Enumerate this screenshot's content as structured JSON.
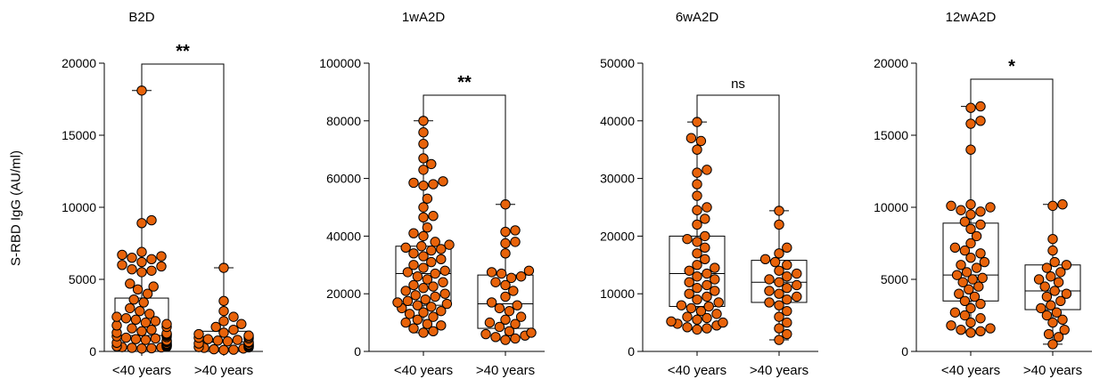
{
  "figure": {
    "ylabel": "S-RBD IgG (AU/ml)",
    "dot_fill": "#E8630A",
    "dot_stroke": "#000000"
  },
  "chart_data": [
    {
      "type": "box",
      "title": "B2D",
      "categories": [
        "<40 years",
        ">40 years"
      ],
      "ylabel": "S-RBD IgG (AU/ml)",
      "ylim": [
        0,
        20000
      ],
      "yticks": [
        0,
        5000,
        10000,
        15000,
        20000
      ],
      "significance": "**",
      "boxes": [
        {
          "min": 200,
          "q1": 300,
          "median": 1100,
          "q3": 3700,
          "max": 18100
        },
        {
          "min": 100,
          "q1": 250,
          "median": 650,
          "q3": 1400,
          "max": 5800
        }
      ],
      "points": [
        [
          18100,
          9100,
          8900,
          6900,
          6700,
          6600,
          6500,
          6400,
          6200,
          6000,
          5900,
          5700,
          5600,
          5500,
          4700,
          4500,
          4300,
          4000,
          3600,
          3400,
          3000,
          2800,
          2600,
          2400,
          2300,
          2200,
          2100,
          2000,
          1900,
          1800,
          1700,
          1600,
          1500,
          1400,
          1300,
          1250,
          1200,
          1150,
          1100,
          1050,
          1000,
          950,
          900,
          850,
          800,
          750,
          700,
          650,
          600,
          550,
          500,
          450,
          400,
          380,
          350,
          320,
          300,
          280,
          250,
          220,
          200
        ],
        [
          5800,
          3500,
          2800,
          2400,
          2100,
          1900,
          1700,
          1500,
          1300,
          1200,
          1100,
          1000,
          950,
          900,
          850,
          800,
          750,
          700,
          650,
          600,
          550,
          500,
          450,
          400,
          350,
          300,
          280,
          250,
          200,
          150,
          120,
          100
        ]
      ]
    },
    {
      "type": "box",
      "title": "1wA2D",
      "categories": [
        "<40 years",
        ">40 years"
      ],
      "ylim": [
        0,
        100000
      ],
      "yticks": [
        0,
        20000,
        40000,
        60000,
        80000,
        100000
      ],
      "significance": "**",
      "boxes": [
        {
          "min": 6500,
          "q1": 16000,
          "median": 27000,
          "q3": 36500,
          "max": 80000
        },
        {
          "min": 4000,
          "q1": 8000,
          "median": 16500,
          "q3": 26500,
          "max": 51000
        }
      ],
      "points": [
        [
          80000,
          76000,
          72000,
          67000,
          65000,
          63000,
          59000,
          58500,
          58000,
          57500,
          53000,
          50000,
          47000,
          46500,
          43000,
          41000,
          40000,
          38000,
          37000,
          36500,
          36000,
          35500,
          35000,
          34000,
          33000,
          32000,
          31000,
          30000,
          29000,
          28000,
          27500,
          27000,
          26000,
          25000,
          24000,
          23000,
          22500,
          22000,
          21000,
          20000,
          19500,
          19000,
          18000,
          17500,
          17000,
          16500,
          16000,
          15500,
          15000,
          14000,
          13500,
          13000,
          12000,
          11000,
          10000,
          9500,
          9000,
          8000,
          7000,
          6500
        ],
        [
          51000,
          42000,
          41500,
          38000,
          37500,
          34000,
          28000,
          27500,
          27000,
          26000,
          25500,
          24000,
          23000,
          21000,
          19000,
          17000,
          16000,
          15000,
          14000,
          12000,
          11000,
          10000,
          9500,
          8500,
          7000,
          6500,
          6000,
          5500,
          5000,
          4500,
          4000
        ]
      ]
    },
    {
      "type": "box",
      "title": "6wA2D",
      "categories": [
        "<40 years",
        ">40 years"
      ],
      "ylim": [
        0,
        50000
      ],
      "yticks": [
        0,
        10000,
        20000,
        30000,
        40000,
        50000
      ],
      "significance": "ns",
      "boxes": [
        {
          "min": 3800,
          "q1": 7800,
          "median": 13500,
          "q3": 20000,
          "max": 39800
        },
        {
          "min": 2000,
          "q1": 8500,
          "median": 12000,
          "q3": 15800,
          "max": 24400
        }
      ],
      "points": [
        [
          39800,
          37000,
          36500,
          35000,
          31500,
          31000,
          29000,
          27000,
          25000,
          24500,
          23000,
          22000,
          20000,
          19500,
          19000,
          18000,
          17000,
          16000,
          15000,
          14500,
          14000,
          13500,
          13000,
          12500,
          12000,
          11500,
          11000,
          10500,
          10000,
          9500,
          9000,
          8500,
          8000,
          7800,
          7500,
          7000,
          6500,
          6000,
          5800,
          5500,
          5200,
          5000,
          4800,
          4500,
          4200,
          4000,
          3800
        ],
        [
          24400,
          22000,
          18000,
          17000,
          16000,
          15500,
          15000,
          14000,
          13500,
          13000,
          12500,
          12000,
          11500,
          11000,
          10500,
          10000,
          9500,
          9000,
          8500,
          8000,
          7000,
          6000,
          5000,
          4000,
          3000,
          2000
        ]
      ]
    },
    {
      "type": "box",
      "title": "12wA2D",
      "categories": [
        "<40 years",
        ">40 years"
      ],
      "ylim": [
        0,
        20000
      ],
      "yticks": [
        0,
        5000,
        10000,
        15000,
        20000
      ],
      "significance": "*",
      "boxes": [
        {
          "min": 1300,
          "q1": 3500,
          "median": 5300,
          "q3": 8900,
          "max": 17000
        },
        {
          "min": 500,
          "q1": 2900,
          "median": 4200,
          "q3": 6000,
          "max": 10200
        }
      ],
      "points": [
        [
          17000,
          16900,
          16000,
          15800,
          14000,
          10200,
          10100,
          10000,
          9800,
          9700,
          9500,
          9000,
          8800,
          8500,
          8000,
          7500,
          7200,
          7000,
          6800,
          6500,
          6200,
          6000,
          5800,
          5500,
          5300,
          5100,
          5000,
          4800,
          4500,
          4300,
          4000,
          3800,
          3500,
          3300,
          3000,
          2700,
          2500,
          2300,
          2000,
          1800,
          1600,
          1500,
          1400,
          1300
        ],
        [
          10200,
          10100,
          7800,
          7000,
          6200,
          6000,
          5800,
          5500,
          5200,
          5000,
          4800,
          4500,
          4200,
          4000,
          3800,
          3500,
          3200,
          3000,
          2700,
          2500,
          2200,
          2000,
          1500,
          1200,
          1000,
          500
        ]
      ]
    }
  ]
}
